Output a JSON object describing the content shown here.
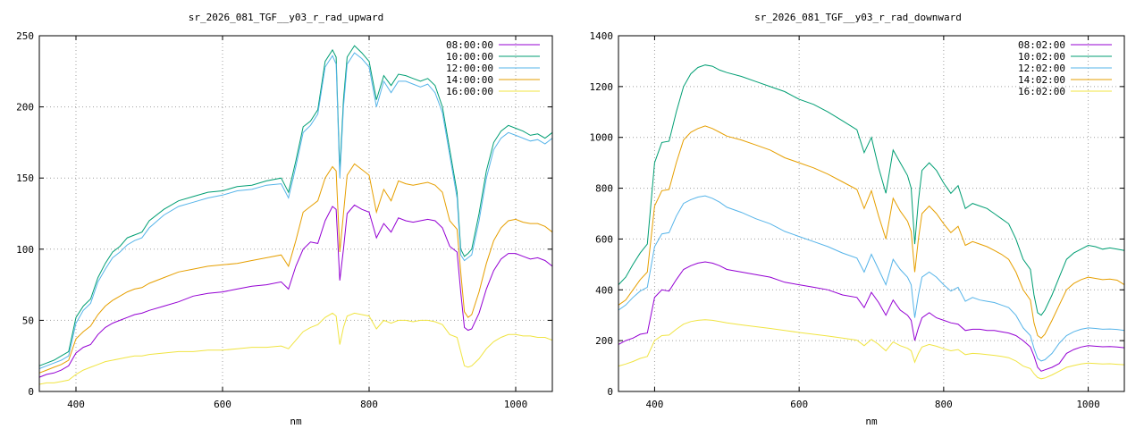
{
  "chart_data": [
    {
      "type": "line",
      "title": "sr_2026_081_TGF__y03_r_rad_upward",
      "xlabel": "nm",
      "ylabel": "",
      "xlim": [
        350,
        1050
      ],
      "ylim": [
        0,
        250
      ],
      "xticks": [
        400,
        600,
        800,
        1000
      ],
      "yticks": [
        0,
        50,
        100,
        150,
        200,
        250
      ],
      "grid": true,
      "legend_position": "top-right",
      "x": [
        350,
        360,
        370,
        380,
        390,
        400,
        410,
        420,
        430,
        440,
        450,
        460,
        470,
        480,
        490,
        500,
        520,
        540,
        560,
        580,
        600,
        620,
        640,
        660,
        680,
        690,
        700,
        710,
        720,
        730,
        740,
        750,
        755,
        760,
        765,
        770,
        780,
        790,
        800,
        810,
        820,
        830,
        840,
        850,
        860,
        870,
        880,
        890,
        900,
        910,
        920,
        925,
        930,
        935,
        940,
        950,
        960,
        970,
        980,
        990,
        1000,
        1010,
        1020,
        1030,
        1040,
        1050
      ],
      "series": [
        {
          "name": "08:00:00",
          "color": "#9400d3",
          "values": [
            10,
            12,
            13,
            15,
            18,
            27,
            31,
            33,
            40,
            45,
            48,
            50,
            52,
            54,
            55,
            57,
            60,
            63,
            67,
            69,
            70,
            72,
            74,
            75,
            77,
            72,
            88,
            100,
            105,
            104,
            120,
            130,
            128,
            78,
            100,
            125,
            131,
            128,
            126,
            108,
            118,
            112,
            122,
            120,
            119,
            120,
            121,
            120,
            115,
            102,
            98,
            70,
            45,
            43,
            44,
            55,
            72,
            85,
            93,
            97,
            97,
            95,
            93,
            94,
            92,
            88
          ]
        },
        {
          "name": "10:00:00",
          "color": "#009e73",
          "values": [
            18,
            20,
            22,
            25,
            28,
            52,
            60,
            65,
            80,
            90,
            98,
            102,
            108,
            110,
            112,
            120,
            128,
            134,
            137,
            140,
            141,
            144,
            145,
            148,
            150,
            140,
            162,
            186,
            190,
            198,
            232,
            240,
            235,
            155,
            205,
            235,
            243,
            238,
            232,
            205,
            222,
            215,
            223,
            222,
            220,
            218,
            220,
            215,
            200,
            170,
            140,
            100,
            95,
            97,
            100,
            125,
            155,
            175,
            183,
            187,
            185,
            183,
            180,
            181,
            178,
            182
          ]
        },
        {
          "name": "12:00:00",
          "color": "#56b4e9",
          "values": [
            16,
            18,
            20,
            22,
            25,
            48,
            57,
            62,
            77,
            86,
            94,
            98,
            103,
            106,
            108,
            115,
            124,
            130,
            133,
            136,
            138,
            141,
            142,
            145,
            146,
            136,
            158,
            182,
            187,
            195,
            228,
            236,
            230,
            150,
            200,
            230,
            238,
            234,
            228,
            200,
            218,
            210,
            218,
            218,
            216,
            214,
            216,
            210,
            196,
            166,
            136,
            96,
            92,
            94,
            96,
            120,
            150,
            170,
            178,
            182,
            180,
            178,
            176,
            177,
            174,
            178
          ]
        },
        {
          "name": "14:00:00",
          "color": "#e69f00",
          "values": [
            13,
            15,
            17,
            19,
            22,
            37,
            42,
            46,
            54,
            60,
            64,
            67,
            70,
            72,
            73,
            76,
            80,
            84,
            86,
            88,
            89,
            90,
            92,
            94,
            96,
            88,
            106,
            126,
            130,
            134,
            150,
            158,
            155,
            98,
            125,
            152,
            160,
            156,
            152,
            126,
            142,
            134,
            148,
            146,
            145,
            146,
            147,
            145,
            140,
            120,
            114,
            84,
            56,
            52,
            54,
            70,
            90,
            106,
            115,
            120,
            121,
            119,
            118,
            118,
            116,
            112
          ]
        },
        {
          "name": "16:00:00",
          "color": "#f0e442",
          "values": [
            5,
            6,
            6,
            7,
            8,
            12,
            15,
            17,
            19,
            21,
            22,
            23,
            24,
            25,
            25,
            26,
            27,
            28,
            28,
            29,
            29,
            30,
            31,
            31,
            32,
            30,
            36,
            42,
            45,
            47,
            52,
            55,
            53,
            33,
            45,
            53,
            55,
            54,
            53,
            44,
            50,
            48,
            50,
            50,
            49,
            50,
            50,
            49,
            47,
            40,
            38,
            28,
            18,
            17,
            18,
            23,
            30,
            35,
            38,
            40,
            40,
            39,
            39,
            38,
            38,
            36
          ]
        }
      ]
    },
    {
      "type": "line",
      "title": "sr_2026_081_TGF__y03_r_rad_downward",
      "xlabel": "nm",
      "ylabel": "",
      "xlim": [
        350,
        1050
      ],
      "ylim": [
        0,
        1400
      ],
      "xticks": [
        400,
        600,
        800,
        1000
      ],
      "yticks": [
        0,
        200,
        400,
        600,
        800,
        1000,
        1200,
        1400
      ],
      "grid": true,
      "legend_position": "top-right",
      "x": [
        350,
        360,
        370,
        380,
        390,
        400,
        410,
        420,
        430,
        440,
        450,
        460,
        470,
        480,
        490,
        500,
        520,
        540,
        560,
        580,
        600,
        620,
        640,
        660,
        680,
        690,
        700,
        710,
        720,
        730,
        740,
        750,
        755,
        760,
        765,
        770,
        780,
        790,
        800,
        810,
        820,
        830,
        840,
        850,
        860,
        870,
        880,
        890,
        900,
        910,
        920,
        925,
        930,
        935,
        940,
        950,
        960,
        970,
        980,
        990,
        1000,
        1010,
        1020,
        1030,
        1040,
        1050
      ],
      "series": [
        {
          "name": "08:02:00",
          "color": "#9400d3",
          "values": [
            185,
            200,
            210,
            225,
            230,
            370,
            400,
            395,
            440,
            480,
            495,
            505,
            510,
            505,
            495,
            480,
            470,
            460,
            450,
            430,
            420,
            410,
            400,
            380,
            370,
            330,
            390,
            350,
            300,
            360,
            320,
            300,
            280,
            200,
            250,
            290,
            310,
            290,
            280,
            270,
            265,
            240,
            245,
            245,
            240,
            240,
            235,
            230,
            220,
            200,
            175,
            140,
            95,
            80,
            85,
            95,
            110,
            150,
            165,
            175,
            180,
            178,
            176,
            177,
            175,
            172
          ]
        },
        {
          "name": "10:02:00",
          "color": "#009e73",
          "values": [
            420,
            450,
            500,
            545,
            580,
            900,
            980,
            985,
            1100,
            1200,
            1250,
            1275,
            1285,
            1280,
            1265,
            1255,
            1240,
            1220,
            1200,
            1180,
            1150,
            1130,
            1100,
            1065,
            1030,
            940,
            1000,
            880,
            780,
            950,
            900,
            850,
            800,
            580,
            750,
            870,
            900,
            870,
            820,
            780,
            810,
            720,
            740,
            730,
            720,
            700,
            680,
            660,
            600,
            520,
            480,
            380,
            310,
            300,
            320,
            380,
            450,
            520,
            545,
            560,
            575,
            570,
            560,
            565,
            560,
            555
          ]
        },
        {
          "name": "12:02:00",
          "color": "#56b4e9",
          "values": [
            320,
            340,
            370,
            395,
            410,
            570,
            620,
            625,
            690,
            740,
            755,
            765,
            770,
            760,
            745,
            725,
            705,
            680,
            660,
            630,
            610,
            590,
            570,
            545,
            525,
            470,
            540,
            480,
            420,
            520,
            480,
            450,
            420,
            290,
            380,
            450,
            470,
            450,
            420,
            395,
            410,
            355,
            370,
            360,
            355,
            350,
            340,
            330,
            300,
            250,
            220,
            170,
            130,
            120,
            125,
            150,
            190,
            220,
            235,
            245,
            250,
            248,
            245,
            246,
            244,
            240
          ]
        },
        {
          "name": "14:02:00",
          "color": "#e69f00",
          "values": [
            340,
            360,
            400,
            440,
            470,
            730,
            790,
            795,
            900,
            990,
            1020,
            1035,
            1045,
            1035,
            1020,
            1005,
            990,
            970,
            950,
            920,
            900,
            880,
            855,
            825,
            795,
            720,
            790,
            690,
            600,
            760,
            710,
            670,
            630,
            470,
            600,
            700,
            730,
            700,
            660,
            625,
            650,
            575,
            590,
            580,
            570,
            555,
            540,
            520,
            470,
            400,
            360,
            270,
            220,
            210,
            225,
            280,
            340,
            400,
            425,
            440,
            450,
            445,
            440,
            442,
            438,
            420
          ]
        },
        {
          "name": "16:02:00",
          "color": "#f0e442",
          "values": [
            100,
            108,
            118,
            130,
            138,
            200,
            220,
            222,
            245,
            265,
            275,
            280,
            282,
            280,
            275,
            270,
            262,
            255,
            248,
            240,
            232,
            225,
            218,
            210,
            202,
            180,
            205,
            185,
            160,
            195,
            180,
            170,
            160,
            115,
            150,
            175,
            185,
            178,
            168,
            160,
            165,
            145,
            150,
            148,
            145,
            142,
            138,
            133,
            120,
            100,
            90,
            70,
            55,
            50,
            53,
            65,
            80,
            95,
            102,
            108,
            112,
            110,
            108,
            109,
            107,
            105
          ]
        }
      ]
    }
  ]
}
